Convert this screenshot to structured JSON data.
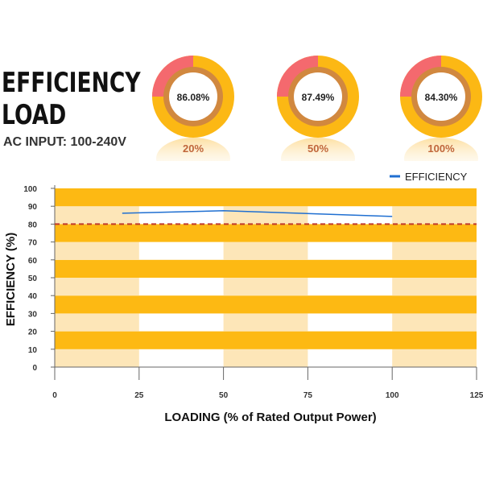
{
  "header": {
    "title_line1": "EFFICIENCY",
    "title_line2": "LOAD",
    "subtitle": "AC INPUT:  100-240V"
  },
  "donuts": [
    {
      "value_label": "86.08%",
      "load_label": "20%",
      "fraction": 0.25
    },
    {
      "value_label": "87.49%",
      "load_label": "50%",
      "fraction": 0.25
    },
    {
      "value_label": "84.30%",
      "load_label": "100%",
      "fraction": 0.25
    }
  ],
  "colors": {
    "donut_orange": "#fcb814",
    "donut_red": "#f4696e",
    "donut_ring": "#d1883f",
    "band_dark": "#fdb913",
    "band_light": "#fde6b8",
    "line": "#1f6fd1",
    "threshold": "#c0392b",
    "label": "#c0663a"
  },
  "chart_data": {
    "type": "line",
    "xlabel": "LOADING (% of Rated Output Power)",
    "ylabel": "EFFICIENCY (%)",
    "xlim": [
      0,
      125
    ],
    "ylim": [
      0,
      100
    ],
    "x_ticks": [
      "0",
      "25",
      "50",
      "75",
      "100",
      "125"
    ],
    "y_ticks": [
      "0",
      "10",
      "20",
      "30",
      "40",
      "50",
      "60",
      "70",
      "80",
      "90",
      "100"
    ],
    "legend_position": "top-right",
    "series": [
      {
        "name": "EFFICIENCY",
        "x": [
          20,
          50,
          100
        ],
        "y": [
          86.08,
          87.49,
          84.3
        ]
      }
    ],
    "threshold": {
      "y": 80,
      "style": "dashed"
    }
  }
}
